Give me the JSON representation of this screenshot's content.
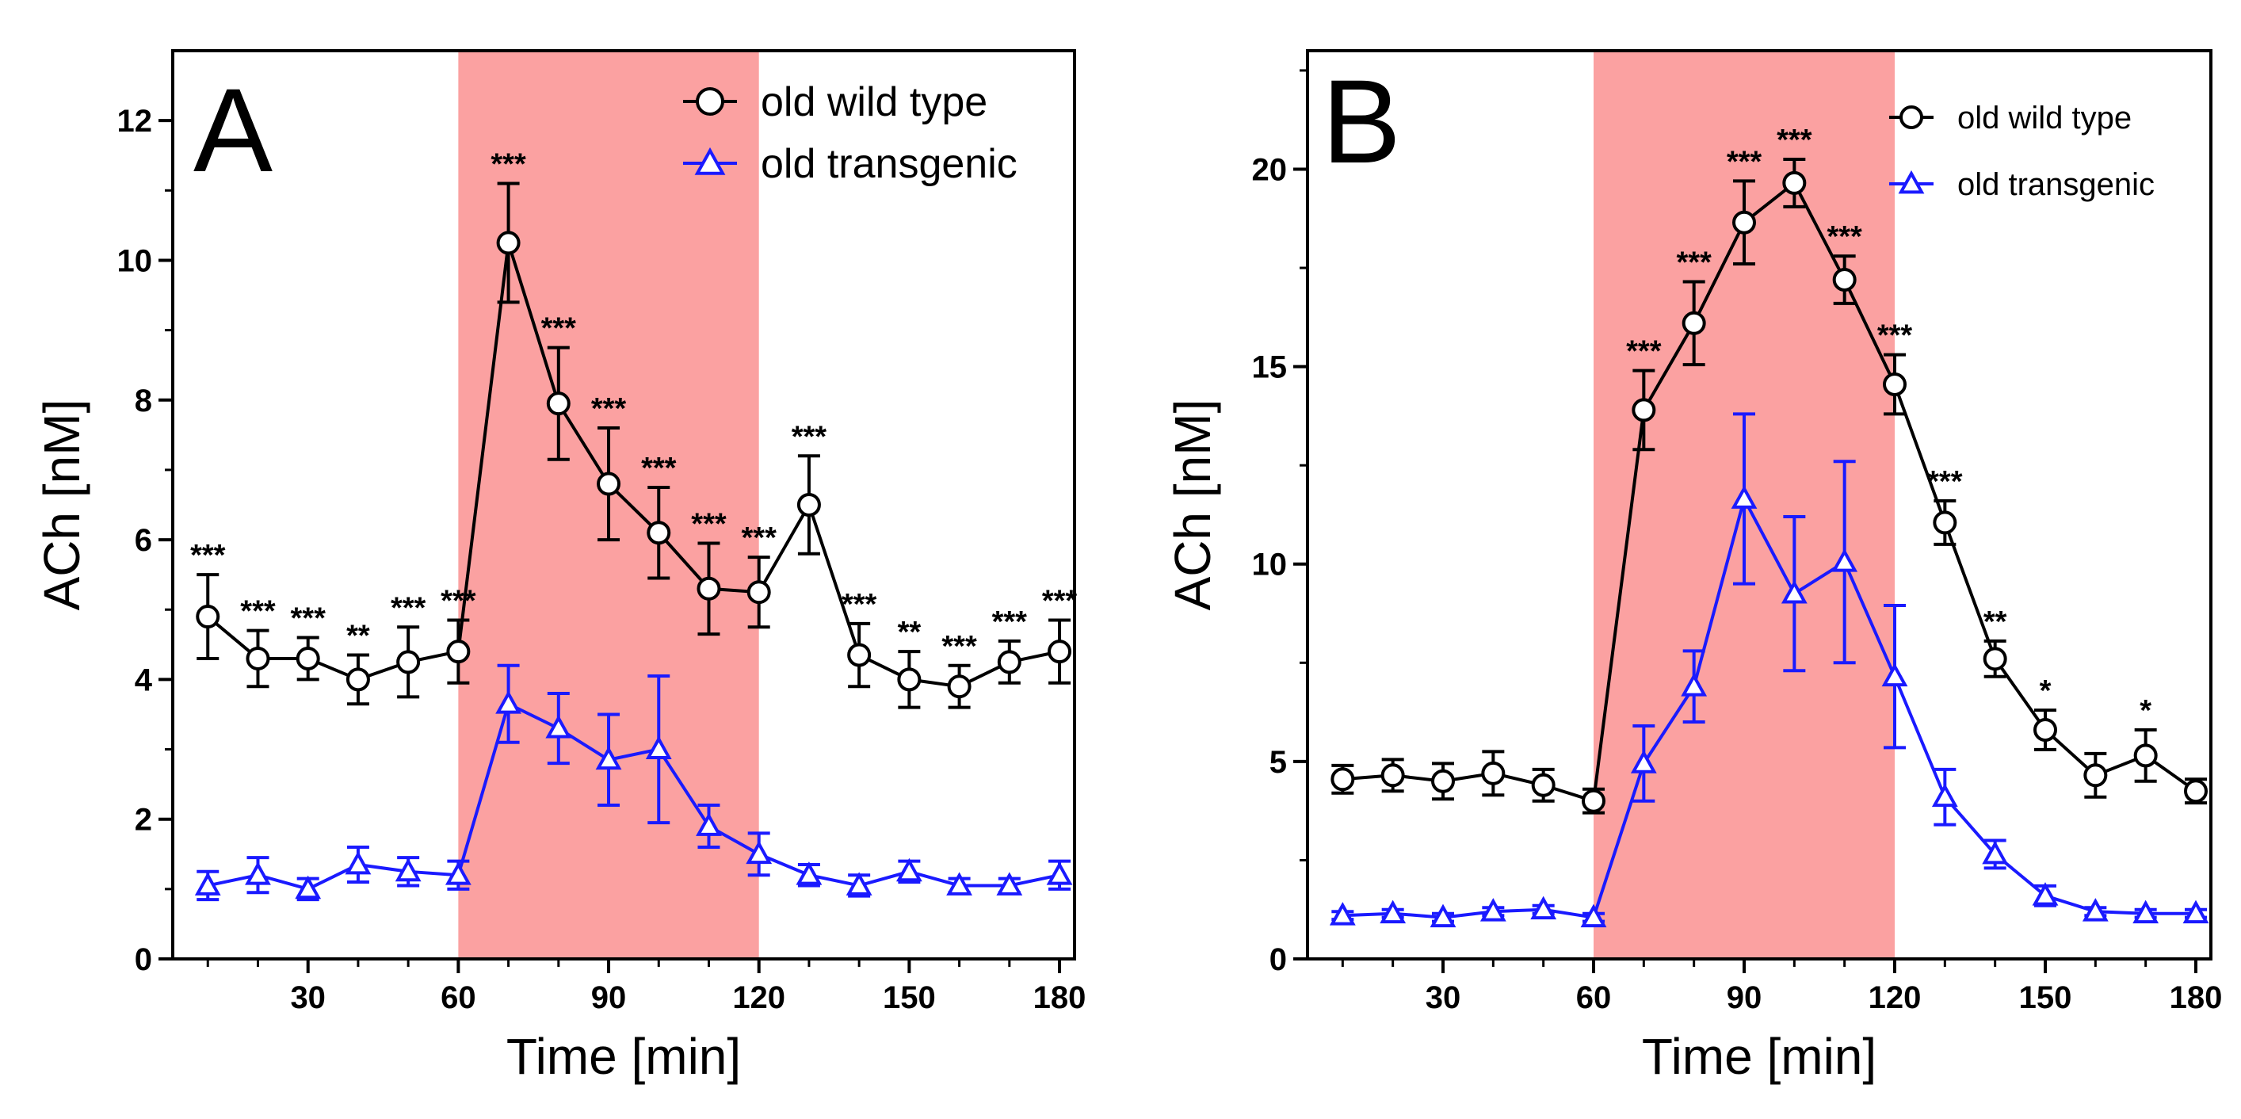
{
  "figure": {
    "colors": {
      "wild_type": "#000000",
      "transgenic": "#1a1aff",
      "shade": "#fba1a1",
      "marker_fill": "#ffffff"
    }
  },
  "chart_data": [
    {
      "type": "line",
      "panel_label": "A",
      "xlabel": "Time [min]",
      "ylabel": "ACh [nM]",
      "xlim": [
        3,
        183
      ],
      "ylim": [
        0,
        13
      ],
      "xticks": [
        30,
        60,
        90,
        120,
        150,
        180
      ],
      "yticks": [
        0,
        2,
        4,
        6,
        8,
        10,
        12
      ],
      "shaded_region": [
        60,
        120
      ],
      "legend_position": "top-right",
      "x": [
        10,
        20,
        30,
        40,
        50,
        60,
        70,
        80,
        90,
        100,
        110,
        120,
        130,
        140,
        150,
        160,
        170,
        180
      ],
      "series": [
        {
          "name": "old wild type",
          "marker": "circle",
          "color": "#000000",
          "values": [
            4.9,
            4.3,
            4.3,
            4.0,
            4.25,
            4.4,
            10.25,
            7.95,
            6.8,
            6.1,
            5.3,
            5.25,
            6.5,
            4.35,
            4.0,
            3.9,
            4.25,
            4.4
          ],
          "errors": [
            0.6,
            0.4,
            0.3,
            0.35,
            0.5,
            0.45,
            0.85,
            0.8,
            0.8,
            0.65,
            0.65,
            0.5,
            0.7,
            0.45,
            0.4,
            0.3,
            0.3,
            0.45
          ]
        },
        {
          "name": "old transgenic",
          "marker": "triangle",
          "color": "#1a1aff",
          "values": [
            1.05,
            1.2,
            1.0,
            1.35,
            1.25,
            1.2,
            3.65,
            3.3,
            2.85,
            3.0,
            1.9,
            1.5,
            1.2,
            1.05,
            1.25,
            1.05,
            1.05,
            1.2
          ],
          "errors": [
            0.2,
            0.25,
            0.15,
            0.25,
            0.2,
            0.2,
            0.55,
            0.5,
            0.65,
            1.05,
            0.3,
            0.3,
            0.15,
            0.15,
            0.15,
            0.1,
            0.1,
            0.2
          ]
        }
      ],
      "significance": [
        "***",
        "***",
        "***",
        "**",
        "***",
        "***",
        "***",
        "***",
        "***",
        "***",
        "***",
        "***",
        "***",
        "***",
        "**",
        "***",
        "***",
        "***"
      ]
    },
    {
      "type": "line",
      "panel_label": "B",
      "xlabel": "Time [min]",
      "ylabel": "ACh [nM]",
      "xlim": [
        3,
        183
      ],
      "ylim": [
        0,
        23
      ],
      "xticks": [
        30,
        60,
        90,
        120,
        150,
        180
      ],
      "yticks": [
        0,
        5,
        10,
        15,
        20
      ],
      "shaded_region": [
        60,
        120
      ],
      "legend_position": "top-right",
      "x": [
        10,
        20,
        30,
        40,
        50,
        60,
        70,
        80,
        90,
        100,
        110,
        120,
        130,
        140,
        150,
        160,
        170,
        180
      ],
      "series": [
        {
          "name": "old wild type",
          "marker": "circle",
          "color": "#000000",
          "values": [
            4.55,
            4.65,
            4.5,
            4.7,
            4.4,
            4.0,
            13.9,
            16.1,
            18.65,
            19.65,
            17.2,
            14.55,
            11.05,
            7.6,
            5.8,
            4.65,
            5.15,
            4.25
          ],
          "errors": [
            0.35,
            0.4,
            0.45,
            0.55,
            0.4,
            0.3,
            1.0,
            1.05,
            1.05,
            0.6,
            0.6,
            0.75,
            0.55,
            0.45,
            0.5,
            0.55,
            0.65,
            0.3
          ]
        },
        {
          "name": "old transgenic",
          "marker": "triangle",
          "color": "#1a1aff",
          "values": [
            1.1,
            1.15,
            1.05,
            1.2,
            1.25,
            1.05,
            4.95,
            6.9,
            11.65,
            9.25,
            10.05,
            7.15,
            4.1,
            2.65,
            1.6,
            1.2,
            1.15,
            1.15
          ],
          "errors": [
            0.1,
            0.1,
            0.1,
            0.1,
            0.1,
            0.1,
            0.95,
            0.9,
            2.15,
            1.95,
            2.55,
            1.8,
            0.7,
            0.35,
            0.25,
            0.1,
            0.1,
            0.1
          ]
        }
      ],
      "significance": [
        "",
        "",
        "",
        "",
        "",
        "",
        "***",
        "***",
        "***",
        "***",
        "***",
        "***",
        "***",
        "**",
        "*",
        "",
        "*",
        ""
      ]
    }
  ]
}
